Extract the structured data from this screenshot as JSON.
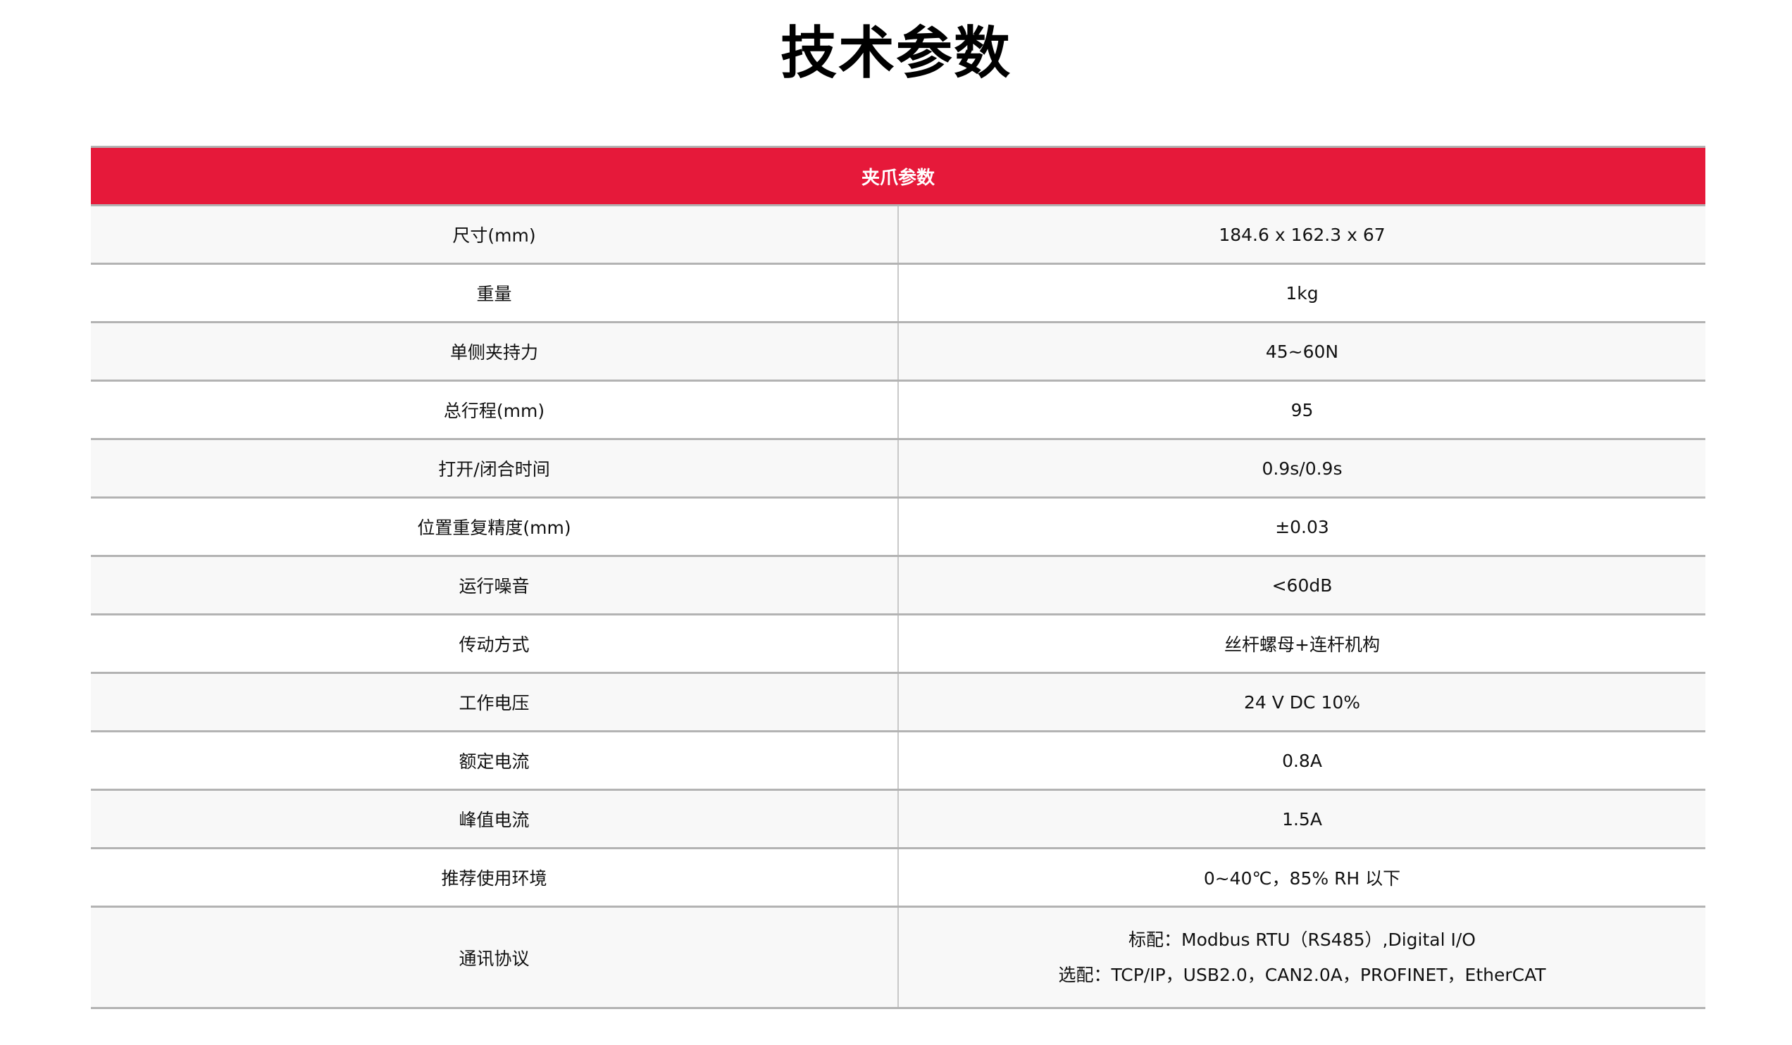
{
  "title": "技术参数",
  "table": {
    "header": "夹爪参数",
    "rows": [
      {
        "label": "尺寸(mm)",
        "value": "184.6 x 162.3 x 67"
      },
      {
        "label": "重量",
        "value": "1kg"
      },
      {
        "label": "单侧夹持力",
        "value": "45~60N"
      },
      {
        "label": "总行程(mm)",
        "value": "95"
      },
      {
        "label": "打开/闭合时间",
        "value": "0.9s/0.9s"
      },
      {
        "label": "位置重复精度(mm)",
        "value": "±0.03"
      },
      {
        "label": "运行噪音",
        "value": "<60dB"
      },
      {
        "label": "传动方式",
        "value": "丝杆螺母+连杆机构"
      },
      {
        "label": "工作电压",
        "value": "24 V DC 10%"
      },
      {
        "label": "额定电流",
        "value": "0.8A"
      },
      {
        "label": "峰值电流",
        "value": "1.5A"
      },
      {
        "label": "推荐使用环境",
        "value": "0~40℃，85% RH 以下"
      }
    ],
    "comm": {
      "label": "通讯协议",
      "standard": "标配：Modbus RTU（RS485）,Digital I/O",
      "optional": "选配：TCP/IP，USB2.0，CAN2.0A，PROFINET，EtherCAT"
    }
  },
  "colors": {
    "header_bg": "#e6193a",
    "row_alt_bg": "#f8f8f8",
    "border": "#b3b3b3"
  }
}
